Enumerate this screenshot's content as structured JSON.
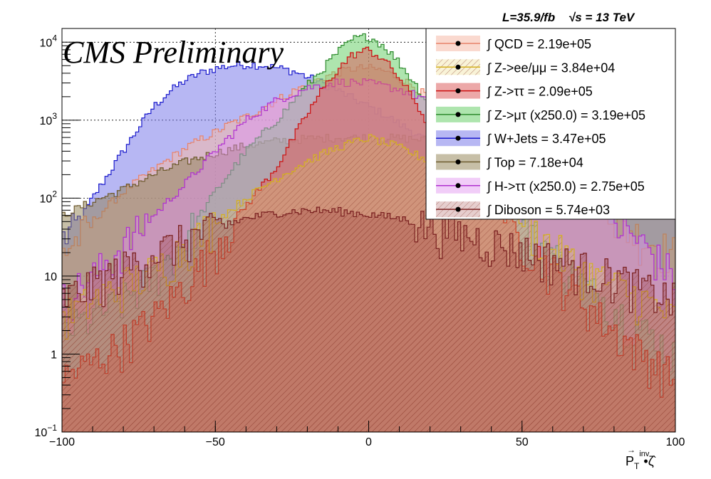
{
  "header": {
    "lumi_text": "L=35.9/fb",
    "energy_text": "√s = 13 TeV",
    "watermark": "CMS Preliminary"
  },
  "chart_data": {
    "type": "area",
    "xlabel": "P⃗T inv • ζ̂",
    "xlabel_main": "P",
    "xlabel_sub": "T",
    "xlabel_sup": "inv",
    "xlabel_tail": "•ζ̂",
    "xlim": [
      -100,
      100
    ],
    "ylim": [
      0.1,
      15000
    ],
    "yscale": "log",
    "grid": true,
    "legend_position": "top-right",
    "x_ticks": [
      {
        "value": -100,
        "label": "−100"
      },
      {
        "value": -50,
        "label": "−50"
      },
      {
        "value": 0,
        "label": "0"
      },
      {
        "value": 50,
        "label": "50"
      },
      {
        "value": 100,
        "label": "100"
      }
    ],
    "y_ticks": [
      {
        "value": 0.1,
        "base": "10",
        "exp": "−1"
      },
      {
        "value": 1,
        "base": "1",
        "exp": ""
      },
      {
        "value": 10,
        "base": "10",
        "exp": ""
      },
      {
        "value": 100,
        "base": "10",
        "exp": "2"
      },
      {
        "value": 1000,
        "base": "10",
        "exp": "3"
      },
      {
        "value": 10000,
        "base": "10",
        "exp": "4"
      }
    ],
    "series": [
      {
        "name": "W+Jets",
        "integral": "∫ W+Jets = 3.47e+05",
        "line": "#1a1acc",
        "fill": "#7b7bea",
        "opacity": 0.55,
        "hatch": false,
        "x": [
          -100,
          -95,
          -90,
          -85,
          -80,
          -75,
          -70,
          -65,
          -60,
          -55,
          -50,
          -45,
          -40,
          -35,
          -30,
          -25,
          -20,
          -15,
          -10,
          -5,
          0,
          5,
          10,
          15,
          20,
          25,
          30,
          35,
          40,
          45,
          50,
          55,
          60,
          65,
          70,
          75,
          80,
          85,
          90,
          95,
          100
        ],
        "values": [
          30,
          45,
          100,
          200,
          400,
          800,
          1500,
          2300,
          3200,
          4000,
          4600,
          5000,
          5200,
          5100,
          4700,
          4300,
          3600,
          3000,
          2400,
          1900,
          1500,
          1200,
          900,
          700,
          500,
          400,
          350,
          300,
          280,
          260,
          250,
          240,
          220,
          200,
          180,
          160,
          140,
          130,
          120,
          110,
          100
        ]
      },
      {
        "name": "QCD",
        "integral": "∫ QCD = 2.19e+05",
        "line": "#e8826a",
        "fill": "#f6b9a8",
        "opacity": 0.55,
        "hatch": false,
        "x": [
          -100,
          -95,
          -90,
          -85,
          -80,
          -75,
          -70,
          -65,
          -60,
          -55,
          -50,
          -45,
          -40,
          -35,
          -30,
          -25,
          -20,
          -15,
          -10,
          -5,
          0,
          5,
          10,
          15,
          20,
          25,
          30,
          35,
          40,
          45,
          50,
          55,
          60,
          65,
          70,
          75,
          80,
          85,
          90,
          95,
          100
        ],
        "values": [
          20,
          30,
          50,
          80,
          120,
          170,
          230,
          320,
          430,
          560,
          700,
          900,
          1100,
          1400,
          1800,
          2300,
          2900,
          3500,
          4100,
          4600,
          4700,
          4300,
          3500,
          2700,
          1900,
          1300,
          900,
          600,
          420,
          300,
          220,
          170,
          130,
          100,
          80,
          60,
          50,
          40,
          30,
          25,
          20
        ]
      },
      {
        "name": "Top",
        "integral": "∫ Top = 7.18e+04",
        "line": "#6e5a2e",
        "fill": "#8f7f4f",
        "opacity": 0.5,
        "hatch": false,
        "x": [
          -100,
          -90,
          -80,
          -70,
          -60,
          -50,
          -40,
          -30,
          -20,
          -10,
          0,
          10,
          20,
          30,
          40,
          50,
          60,
          70,
          80,
          90,
          100
        ],
        "values": [
          60,
          90,
          130,
          200,
          290,
          380,
          470,
          540,
          580,
          600,
          600,
          590,
          560,
          520,
          460,
          390,
          310,
          240,
          170,
          120,
          80
        ]
      },
      {
        "name": "Z->μτ (x250.0)",
        "integral": "∫ Z->μτ (x250.0) = 3.19e+05",
        "line": "#2e8b2e",
        "fill": "#6ccf6c",
        "opacity": 0.55,
        "hatch": false,
        "x": [
          -100,
          -90,
          -80,
          -70,
          -60,
          -50,
          -40,
          -30,
          -20,
          -15,
          -10,
          -5,
          0,
          5,
          10,
          15,
          20,
          30,
          40,
          50,
          60,
          70,
          80,
          90,
          100
        ],
        "values": [
          2,
          3,
          5,
          10,
          30,
          120,
          400,
          1000,
          2800,
          4500,
          7500,
          11000,
          12000,
          9000,
          5500,
          3000,
          1500,
          500,
          150,
          50,
          20,
          8,
          4,
          2,
          1
        ]
      },
      {
        "name": "H->ττ (x250.0)",
        "integral": "∫ H->ττ (x250.0) = 2.75e+05",
        "line": "#b030d0",
        "fill": "#e090f0",
        "opacity": 0.45,
        "hatch": false,
        "x": [
          -100,
          -90,
          -80,
          -70,
          -60,
          -50,
          -40,
          -30,
          -20,
          -10,
          0,
          10,
          20,
          30,
          40,
          50,
          60,
          70,
          80,
          90,
          100
        ],
        "values": [
          5,
          10,
          25,
          60,
          150,
          400,
          1000,
          1800,
          2600,
          3100,
          3000,
          2500,
          1800,
          1200,
          700,
          400,
          200,
          100,
          50,
          25,
          10
        ]
      },
      {
        "name": "Z->ττ",
        "integral": "∫ Z->ττ = 2.09e+05",
        "line": "#cc1010",
        "fill": "#dd6060",
        "opacity": 0.55,
        "hatch": false,
        "x": [
          -100,
          -90,
          -80,
          -70,
          -60,
          -50,
          -40,
          -30,
          -20,
          -15,
          -10,
          -5,
          0,
          5,
          10,
          15,
          20,
          30,
          40,
          50,
          60,
          70,
          80,
          90,
          100
        ],
        "values": [
          0.5,
          0.8,
          1.5,
          3,
          8,
          25,
          80,
          250,
          1200,
          2500,
          4500,
          7000,
          8000,
          6000,
          3500,
          1800,
          800,
          250,
          80,
          30,
          12,
          5,
          2,
          1,
          0.5
        ]
      },
      {
        "name": "Z->ee/μμ",
        "integral": "∫ Z->ee/μμ = 3.84e+04",
        "line": "#d4b020",
        "fill": "#e9d160",
        "opacity": 0.25,
        "hatch": true,
        "x": [
          -100,
          -90,
          -80,
          -70,
          -60,
          -50,
          -40,
          -30,
          -20,
          -10,
          0,
          10,
          20,
          30,
          40,
          50,
          60,
          70,
          80,
          90,
          100
        ],
        "values": [
          3,
          5,
          8,
          12,
          25,
          50,
          100,
          180,
          300,
          450,
          600,
          450,
          300,
          180,
          100,
          50,
          25,
          12,
          8,
          5,
          3
        ]
      },
      {
        "name": "Diboson",
        "integral": "∫ Diboson = 5.74e+03",
        "line": "#7a2020",
        "fill": "#9a3a3a",
        "opacity": 0.3,
        "hatch": true,
        "x": [
          -100,
          -90,
          -80,
          -70,
          -60,
          -50,
          -40,
          -30,
          -20,
          -10,
          0,
          10,
          20,
          30,
          40,
          50,
          60,
          70,
          80,
          90,
          100
        ],
        "values": [
          5,
          8,
          13,
          20,
          30,
          42,
          55,
          65,
          70,
          68,
          62,
          55,
          45,
          36,
          28,
          22,
          17,
          13,
          10,
          7,
          5
        ]
      }
    ],
    "legend_order": [
      "QCD",
      "Z->ee/μμ",
      "Z->ττ",
      "Z->μτ (x250.0)",
      "W+Jets",
      "Top",
      "H->ττ (x250.0)",
      "Diboson"
    ]
  }
}
